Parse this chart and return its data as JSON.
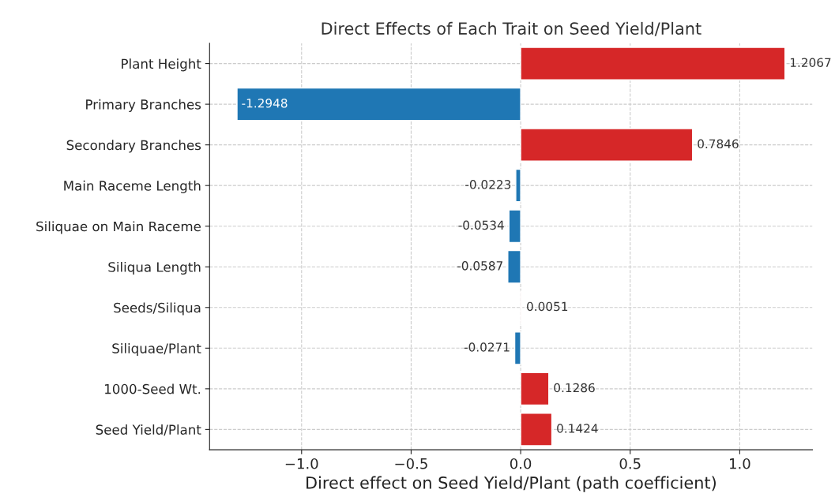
{
  "chart_data": {
    "type": "bar",
    "orientation": "horizontal",
    "title": "Direct Effects of Each Trait on Seed Yield/Plant",
    "xlabel": "Direct effect on Seed Yield/Plant (path coefficient)",
    "categories": [
      "Plant Height",
      "Primary Branches",
      "Secondary Branches",
      "Main Raceme Length",
      "Siliquae on Main Raceme",
      "Siliqua Length",
      "Seeds/Siliqua",
      "Siliquae/Plant",
      "1000-Seed Wt.",
      "Seed Yield/Plant"
    ],
    "values": [
      1.2067,
      -1.2948,
      0.7846,
      -0.0223,
      -0.0534,
      -0.0587,
      0.0051,
      -0.0271,
      0.1286,
      0.1424
    ],
    "colors": [
      "#d62728",
      "#1f77b4",
      "#d62728",
      "#1f77b4",
      "#1f77b4",
      "#1f77b4",
      "#d62728",
      "#1f77b4",
      "#d62728",
      "#d62728"
    ],
    "data_labels": true,
    "xlim": [
      -1.42,
      1.332
    ],
    "xticks": [
      {
        "value": -1.0,
        "label": "−1.0"
      },
      {
        "value": -0.5,
        "label": "−0.5"
      },
      {
        "value": 0.0,
        "label": "0.0"
      },
      {
        "value": 0.5,
        "label": "0.5"
      },
      {
        "value": 1.0,
        "label": "1.0"
      }
    ],
    "grid": true
  }
}
